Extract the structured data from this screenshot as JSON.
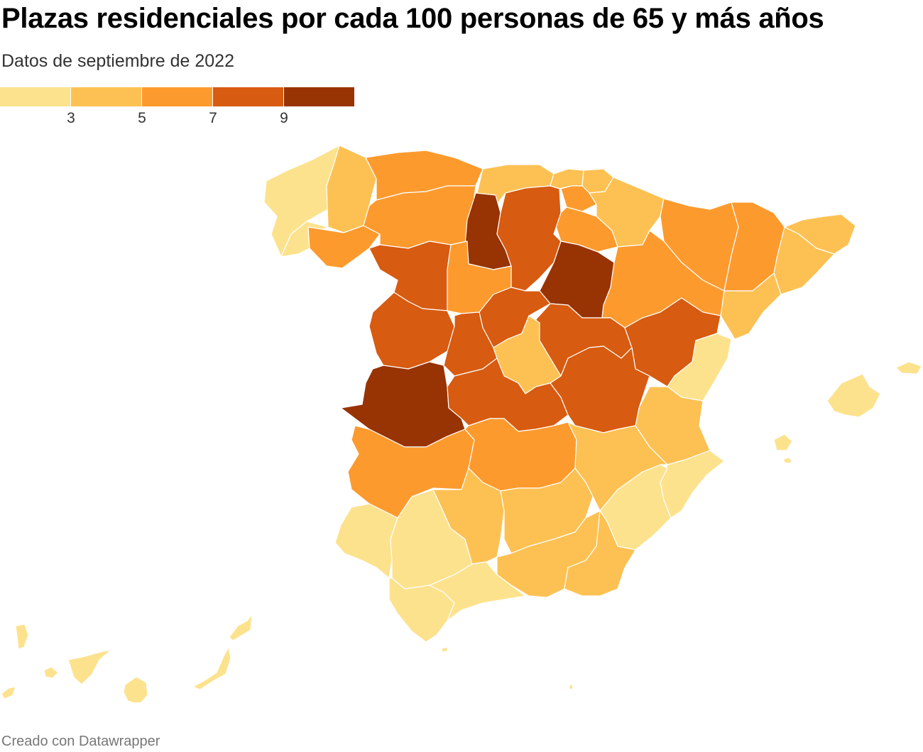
{
  "header": {
    "title": "Plazas residenciales por cada 100 personas de 65 y más años",
    "subtitle": "Datos de septiembre de 2022"
  },
  "legend": {
    "colors": [
      "#fde28e",
      "#fdc153",
      "#fd9a2e",
      "#d75b10",
      "#983303"
    ],
    "ticks": [
      "3",
      "5",
      "7",
      "9"
    ]
  },
  "footer": {
    "credit": "Creado con Datawrapper"
  },
  "map": {
    "regions": [
      {
        "id": "a-coruna",
        "bin": 0
      },
      {
        "id": "lugo",
        "bin": 1
      },
      {
        "id": "pontevedra",
        "bin": 0
      },
      {
        "id": "ourense",
        "bin": 2
      },
      {
        "id": "asturias",
        "bin": 2
      },
      {
        "id": "cantabria",
        "bin": 1
      },
      {
        "id": "bizkaia",
        "bin": 1
      },
      {
        "id": "gipuzkoa",
        "bin": 1
      },
      {
        "id": "alava",
        "bin": 2
      },
      {
        "id": "navarra",
        "bin": 1
      },
      {
        "id": "la-rioja",
        "bin": 2
      },
      {
        "id": "huesca",
        "bin": 2
      },
      {
        "id": "lleida",
        "bin": 2
      },
      {
        "id": "girona",
        "bin": 1
      },
      {
        "id": "barcelona",
        "bin": 1
      },
      {
        "id": "tarragona",
        "bin": 1
      },
      {
        "id": "leon",
        "bin": 2
      },
      {
        "id": "palencia",
        "bin": 4
      },
      {
        "id": "burgos",
        "bin": 3
      },
      {
        "id": "zamora",
        "bin": 3
      },
      {
        "id": "valladolid",
        "bin": 2
      },
      {
        "id": "soria",
        "bin": 4
      },
      {
        "id": "zaragoza",
        "bin": 2
      },
      {
        "id": "salamanca",
        "bin": 3
      },
      {
        "id": "segovia",
        "bin": 3
      },
      {
        "id": "avila",
        "bin": 3
      },
      {
        "id": "guadalajara",
        "bin": 3
      },
      {
        "id": "teruel",
        "bin": 3
      },
      {
        "id": "castellon",
        "bin": 0
      },
      {
        "id": "madrid",
        "bin": 1
      },
      {
        "id": "caceres",
        "bin": 4
      },
      {
        "id": "toledo",
        "bin": 3
      },
      {
        "id": "cuenca",
        "bin": 3
      },
      {
        "id": "valencia",
        "bin": 1
      },
      {
        "id": "badajoz",
        "bin": 2
      },
      {
        "id": "ciudad-real",
        "bin": 2
      },
      {
        "id": "albacete",
        "bin": 1
      },
      {
        "id": "alicante",
        "bin": 0
      },
      {
        "id": "murcia",
        "bin": 0
      },
      {
        "id": "huelva",
        "bin": 0
      },
      {
        "id": "sevilla",
        "bin": 0
      },
      {
        "id": "cordoba",
        "bin": 1
      },
      {
        "id": "jaen",
        "bin": 1
      },
      {
        "id": "granada",
        "bin": 1
      },
      {
        "id": "almeria",
        "bin": 1
      },
      {
        "id": "cadiz",
        "bin": 0
      },
      {
        "id": "malaga",
        "bin": 0
      },
      {
        "id": "mallorca",
        "bin": 0
      },
      {
        "id": "menorca",
        "bin": 0
      },
      {
        "id": "ibiza",
        "bin": 0
      },
      {
        "id": "formentera",
        "bin": 0
      },
      {
        "id": "la-palma",
        "bin": 0
      },
      {
        "id": "el-hierro",
        "bin": 0
      },
      {
        "id": "la-gomera",
        "bin": 0
      },
      {
        "id": "tenerife",
        "bin": 0
      },
      {
        "id": "gran-canaria",
        "bin": 0
      },
      {
        "id": "fuerteventura",
        "bin": 0
      },
      {
        "id": "lanzarote",
        "bin": 0
      },
      {
        "id": "ceuta",
        "bin": 0
      },
      {
        "id": "melilla",
        "bin": 0
      }
    ]
  }
}
